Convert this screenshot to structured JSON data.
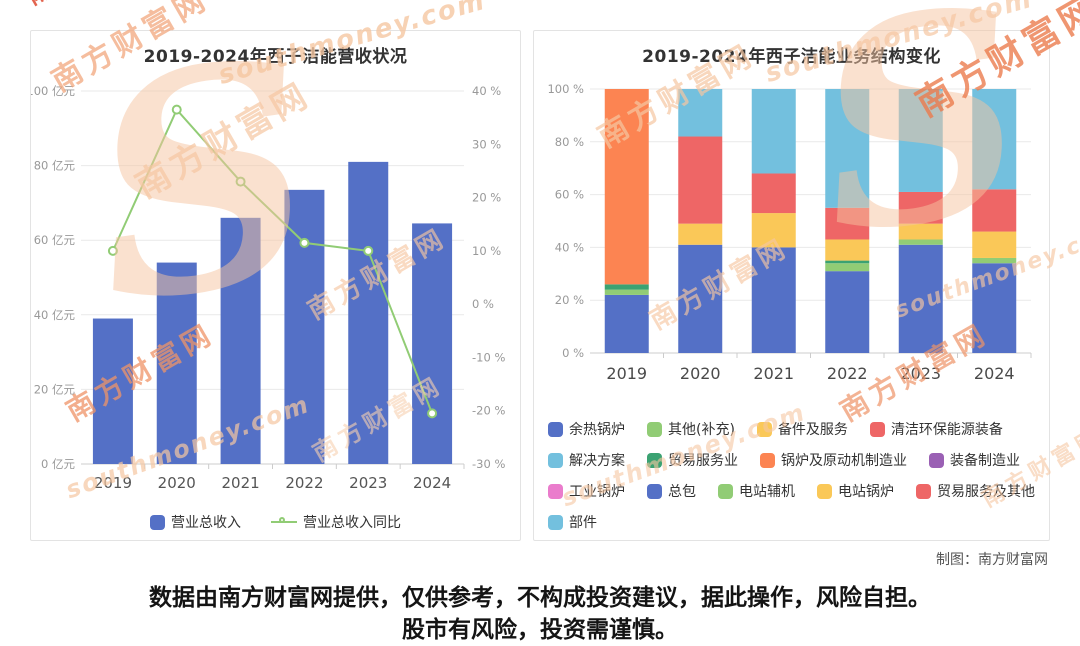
{
  "watermark": {
    "cn": "南方财富网",
    "en": "southmoney.com"
  },
  "footer": {
    "credit": "制图：南方财富网"
  },
  "disclaimer": {
    "line1": "数据由南方财富网提供，仅供参考，不构成投资建议，据此操作，风险自担。",
    "line2": "股市有风险，投资需谨慎。"
  },
  "colors": {
    "bar_blue": "#5470c6",
    "line_green": "#91cc75",
    "grid": "#e9e9e9",
    "axis_line": "#cccccc",
    "axis_text": "#999999",
    "watermark_peach": "#f6c7a2",
    "watermark_red": "#ec7c4e"
  },
  "chart_data": [
    {
      "type": "bar",
      "title": "2019-2024年西子洁能营收状况",
      "categories": [
        "2019",
        "2020",
        "2021",
        "2022",
        "2023",
        "2024"
      ],
      "series": [
        {
          "name": "营业总收入",
          "type": "bar",
          "unit": "亿元",
          "color": "#5470c6",
          "axis": "left",
          "values": [
            39,
            54,
            66,
            73.5,
            81,
            64.5
          ]
        },
        {
          "name": "营业总收入同比",
          "type": "line",
          "unit": "%",
          "color": "#91cc75",
          "axis": "right",
          "values": [
            10,
            36.5,
            23,
            11.5,
            10,
            -20.5
          ]
        }
      ],
      "left_axis": {
        "min": 0,
        "max": 100,
        "ticks": [
          "100 亿元",
          "80 亿元",
          "60 亿元",
          "40 亿元",
          "20 亿元",
          "0 亿元"
        ]
      },
      "right_axis": {
        "min": -30,
        "max": 40,
        "ticks": [
          "40 %",
          "30 %",
          "20 %",
          "10 %",
          "0 %",
          "-10 %",
          "-20 %",
          "-30 %"
        ]
      },
      "grid": true,
      "legend_position": "bottom"
    },
    {
      "type": "bar",
      "subtype": "stacked-percent",
      "title": "2019-2024年西子洁能业务结构变化",
      "categories": [
        "2019",
        "2020",
        "2021",
        "2022",
        "2023",
        "2024"
      ],
      "y_axis": {
        "min": 0,
        "max": 100,
        "ticks": [
          "100 %",
          "80 %",
          "60 %",
          "40 %",
          "20 %",
          "0 %"
        ]
      },
      "grid": true,
      "legend_position": "bottom",
      "legend": [
        {
          "name": "余热锅炉",
          "color": "#5470c6"
        },
        {
          "name": "其他(补充)",
          "color": "#91cc75"
        },
        {
          "name": "备件及服务",
          "color": "#fac858"
        },
        {
          "name": "清洁环保能源装备",
          "color": "#ee6666"
        },
        {
          "name": "解决方案",
          "color": "#73c0de"
        },
        {
          "name": "贸易服务业",
          "color": "#3ba272"
        },
        {
          "name": "锅炉及原动机制造业",
          "color": "#fc8452"
        },
        {
          "name": "装备制造业",
          "color": "#9a60b4"
        },
        {
          "name": "工业锅炉",
          "color": "#ea7ccc"
        },
        {
          "name": "总包",
          "color": "#5470c6"
        },
        {
          "name": "电站辅机",
          "color": "#91cc75"
        },
        {
          "name": "电站锅炉",
          "color": "#fac858"
        },
        {
          "name": "贸易服务及其他",
          "color": "#ee6666"
        },
        {
          "name": "部件",
          "color": "#73c0de"
        }
      ],
      "bars": [
        {
          "year": "2019",
          "segments": [
            {
              "name": "余热锅炉",
              "color": "#5470c6",
              "value": 22
            },
            {
              "name": "其他(补充)",
              "color": "#91cc75",
              "value": 2
            },
            {
              "name": "贸易服务业",
              "color": "#3ba272",
              "value": 2
            },
            {
              "name": "锅炉及原动机制造业",
              "color": "#fc8452",
              "value": 74
            }
          ]
        },
        {
          "year": "2020",
          "segments": [
            {
              "name": "总包",
              "color": "#5470c6",
              "value": 41
            },
            {
              "name": "备件及服务",
              "color": "#fac858",
              "value": 8
            },
            {
              "name": "清洁环保能源装备",
              "color": "#ee6666",
              "value": 33
            },
            {
              "name": "解决方案",
              "color": "#73c0de",
              "value": 18
            }
          ]
        },
        {
          "year": "2021",
          "segments": [
            {
              "name": "总包",
              "color": "#5470c6",
              "value": 40
            },
            {
              "name": "备件及服务",
              "color": "#fac858",
              "value": 13
            },
            {
              "name": "清洁环保能源装备",
              "color": "#ee6666",
              "value": 15
            },
            {
              "name": "解决方案",
              "color": "#73c0de",
              "value": 32
            }
          ]
        },
        {
          "year": "2022",
          "segments": [
            {
              "name": "总包",
              "color": "#5470c6",
              "value": 31
            },
            {
              "name": "电站辅机",
              "color": "#91cc75",
              "value": 3
            },
            {
              "name": "贸易服务业",
              "color": "#3ba272",
              "value": 1
            },
            {
              "name": "电站锅炉",
              "color": "#fac858",
              "value": 8
            },
            {
              "name": "贸易服务及其他",
              "color": "#ee6666",
              "value": 12
            },
            {
              "name": "解决方案",
              "color": "#73c0de",
              "value": 45
            }
          ]
        },
        {
          "year": "2023",
          "segments": [
            {
              "name": "总包",
              "color": "#5470c6",
              "value": 41
            },
            {
              "name": "电站辅机",
              "color": "#91cc75",
              "value": 2
            },
            {
              "name": "电站锅炉",
              "color": "#fac858",
              "value": 6
            },
            {
              "name": "贸易服务及其他",
              "color": "#ee6666",
              "value": 12
            },
            {
              "name": "部件",
              "color": "#73c0de",
              "value": 39
            }
          ]
        },
        {
          "year": "2024",
          "segments": [
            {
              "name": "总包",
              "color": "#5470c6",
              "value": 34
            },
            {
              "name": "电站辅机",
              "color": "#91cc75",
              "value": 2
            },
            {
              "name": "电站锅炉",
              "color": "#fac858",
              "value": 10
            },
            {
              "name": "贸易服务及其他",
              "color": "#ee6666",
              "value": 16
            },
            {
              "name": "部件",
              "color": "#73c0de",
              "value": 38
            }
          ]
        }
      ]
    }
  ]
}
